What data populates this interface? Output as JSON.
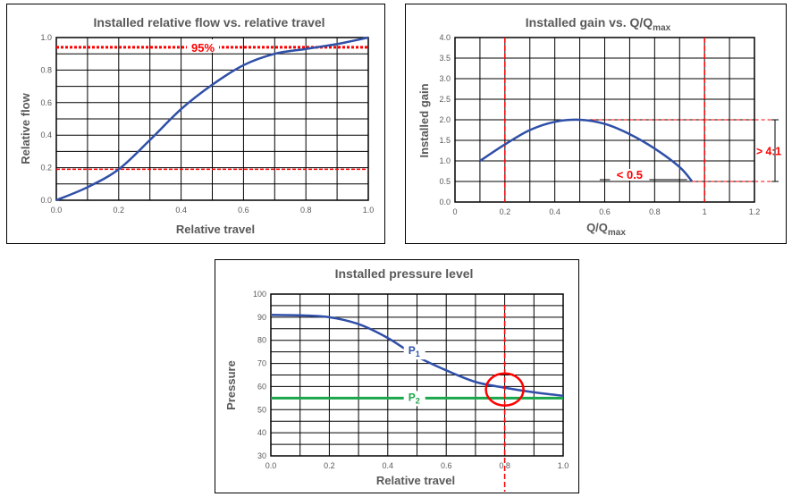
{
  "chart_data": [
    {
      "id": "flow",
      "type": "line",
      "title": "Installed relative flow vs. relative travel",
      "xlabel": "Relative travel",
      "ylabel": "Relative flow",
      "xlim": [
        0,
        1
      ],
      "ylim": [
        0,
        1
      ],
      "xticks": [
        "0.0",
        "0.2",
        "0.4",
        "0.6",
        "0.8",
        "1.0"
      ],
      "yticks": [
        "0.0",
        "0.2",
        "0.4",
        "0.6",
        "0.8",
        "1.0"
      ],
      "grid": true,
      "series": [
        {
          "x": [
            0,
            0.1,
            0.2,
            0.3,
            0.4,
            0.5,
            0.6,
            0.7,
            0.8,
            0.9,
            1.0
          ],
          "y": [
            0,
            0.08,
            0.19,
            0.37,
            0.56,
            0.71,
            0.83,
            0.9,
            0.93,
            0.96,
            1.0
          ]
        }
      ],
      "hlines": [
        {
          "y": 0.94,
          "style": "dotted"
        },
        {
          "y": 0.19,
          "style": "dashed"
        }
      ],
      "annotations": [
        {
          "text": "95%",
          "x": 0.47,
          "y": 0.94
        }
      ],
      "colors": {
        "line": "#2f4fa8",
        "ref": "#ff0000",
        "grid": "#000000"
      }
    },
    {
      "id": "gain",
      "type": "line",
      "title": "Installed gain vs. Q/Q",
      "title_sub": "max",
      "xlabel": "Q/Q",
      "xlabel_sub": "max",
      "ylabel": "Installed gain",
      "xlim": [
        0,
        1.2
      ],
      "ylim": [
        0,
        4
      ],
      "xticks": [
        "0",
        "0.2",
        "0.4",
        "0.6",
        "0.8",
        "1",
        "1.2"
      ],
      "yticks": [
        "0.0",
        "0.5",
        "1.0",
        "1.5",
        "2.0",
        "2.5",
        "3.0",
        "3.5",
        "4.0"
      ],
      "grid": true,
      "series": [
        {
          "x": [
            0.1,
            0.2,
            0.3,
            0.4,
            0.5,
            0.6,
            0.7,
            0.8,
            0.9,
            0.95
          ],
          "y": [
            1.0,
            1.4,
            1.75,
            1.95,
            2.0,
            1.9,
            1.65,
            1.3,
            0.85,
            0.5
          ]
        }
      ],
      "vlines": [
        {
          "x": 0.2
        },
        {
          "x": 1.0
        }
      ],
      "hlines": [
        {
          "y": 2.0
        },
        {
          "y": 0.5
        }
      ],
      "annotations": [
        {
          "text": "< 0.5",
          "x": 0.7,
          "y": 0.5
        },
        {
          "text": "> 4:1"
        }
      ],
      "colors": {
        "line": "#2f4fa8",
        "ref": "#ff0000",
        "grid": "#000000"
      }
    },
    {
      "id": "pressure",
      "type": "line",
      "title": "Installed pressure level",
      "xlabel": "Relative travel",
      "ylabel": "Pressure",
      "xlim": [
        0,
        1
      ],
      "ylim": [
        30,
        100
      ],
      "xticks": [
        "0.0",
        "0.2",
        "0.4",
        "0.6",
        "0.8",
        "1.0"
      ],
      "yticks": [
        "30",
        "40",
        "50",
        "60",
        "70",
        "80",
        "90",
        "100"
      ],
      "grid": true,
      "series": [
        {
          "name": "P",
          "name_sub": "1",
          "x": [
            0,
            0.1,
            0.2,
            0.3,
            0.4,
            0.5,
            0.6,
            0.7,
            0.8,
            0.9,
            1.0
          ],
          "y": [
            91,
            90.8,
            90,
            87,
            81,
            73,
            67,
            62,
            59.5,
            57.5,
            56
          ]
        },
        {
          "name": "P",
          "name_sub": "2",
          "x": [
            0,
            1.0
          ],
          "y": [
            55,
            55
          ]
        }
      ],
      "vlines": [
        {
          "x": 0.8
        }
      ],
      "circle": {
        "x": 0.8,
        "y": 59.5
      },
      "colors": {
        "p1": "#2f4fa8",
        "p2": "#1aa64a",
        "ref": "#ff0000",
        "grid": "#000000"
      }
    }
  ]
}
